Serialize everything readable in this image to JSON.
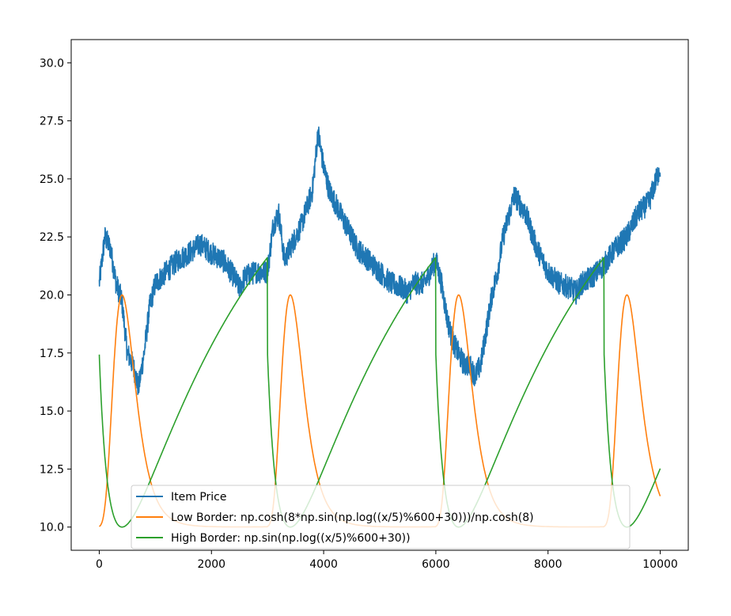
{
  "chart_data": {
    "type": "line",
    "title": "",
    "xlabel": "",
    "ylabel": "",
    "xlim": [
      -500,
      10500
    ],
    "ylim": [
      9.0,
      31.0
    ],
    "x_ticks": [
      0,
      2000,
      4000,
      6000,
      8000,
      10000
    ],
    "x_tick_labels": [
      "0",
      "2000",
      "4000",
      "6000",
      "8000",
      "10000"
    ],
    "y_ticks": [
      10.0,
      12.5,
      15.0,
      17.5,
      20.0,
      22.5,
      25.0,
      27.5,
      30.0
    ],
    "y_tick_labels": [
      "10.0",
      "12.5",
      "15.0",
      "17.5",
      "20.0",
      "22.5",
      "25.0",
      "27.5",
      "30.0"
    ],
    "grid": false,
    "legend": {
      "placement": "lower-center"
    },
    "series": [
      {
        "name": "Item Price",
        "color": "#1f77b4",
        "noisy": true,
        "x": [
          0,
          100,
          200,
          300,
          400,
          500,
          600,
          700,
          800,
          900,
          1000,
          1200,
          1400,
          1600,
          1800,
          2000,
          2200,
          2400,
          2500,
          2600,
          2800,
          3000,
          3100,
          3200,
          3300,
          3400,
          3600,
          3800,
          3900,
          4000,
          4100,
          4200,
          4400,
          4600,
          4800,
          5000,
          5200,
          5400,
          5500,
          5600,
          5800,
          6000,
          6100,
          6200,
          6300,
          6400,
          6500,
          6600,
          6700,
          6800,
          6900,
          7000,
          7100,
          7200,
          7400,
          7600,
          7800,
          8000,
          8200,
          8400,
          8500,
          8600,
          8800,
          9000,
          9200,
          9400,
          9500,
          9600,
          9800,
          10000
        ],
        "y": [
          20.5,
          22.5,
          22.0,
          20.5,
          19.8,
          17.5,
          17.0,
          16.0,
          17.5,
          19.5,
          20.5,
          21.0,
          21.5,
          21.8,
          22.2,
          21.8,
          21.5,
          20.8,
          20.3,
          20.8,
          21.0,
          21.0,
          23.0,
          23.5,
          21.5,
          22.0,
          23.0,
          24.5,
          27.0,
          25.5,
          24.5,
          24.0,
          23.0,
          22.0,
          21.5,
          21.0,
          20.5,
          20.3,
          20.1,
          20.5,
          20.5,
          21.5,
          20.5,
          19.0,
          18.0,
          17.5,
          17.0,
          17.0,
          16.5,
          17.0,
          18.5,
          20.0,
          21.0,
          22.5,
          24.3,
          23.5,
          22.0,
          21.0,
          20.5,
          20.3,
          20.1,
          20.5,
          20.8,
          21.3,
          22.0,
          22.5,
          23.0,
          23.5,
          24.0,
          25.5
        ]
      },
      {
        "name": "Low Border: np.cosh(8*np.sin(np.log((x/5)%600+30)))/np.cosh(8)",
        "color": "#ff7f0e",
        "formula_low": true
      },
      {
        "name": "High Border: np.sin(np.log((x/5)%600+30))",
        "color": "#2ca02c",
        "formula_high": true
      }
    ]
  }
}
